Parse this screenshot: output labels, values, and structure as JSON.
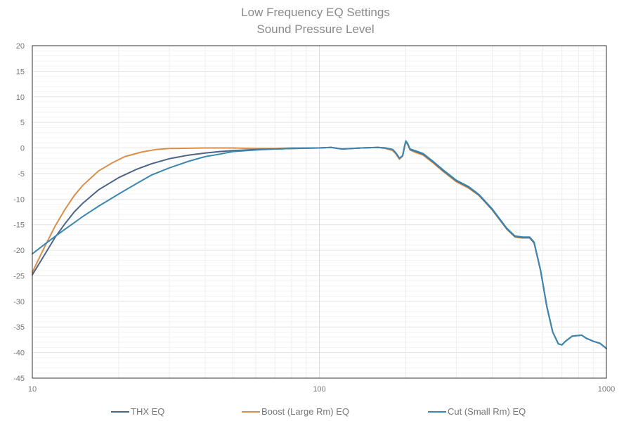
{
  "chart_data": {
    "type": "line",
    "title": "Low Frequency EQ Settings",
    "subtitle": "Sound Pressure Level",
    "xscale": "log",
    "xlim": [
      10,
      1000
    ],
    "ylim": [
      -45,
      20
    ],
    "xticks": [
      "10",
      "100",
      "1000"
    ],
    "yticks": [
      "20",
      "15",
      "10",
      "5",
      "0",
      "-5",
      "-10",
      "-15",
      "-20",
      "-25",
      "-30",
      "-35",
      "-40",
      "-45"
    ],
    "grid": true,
    "legend": "bottom",
    "series": [
      {
        "name": "THX EQ",
        "color": "#4a6585",
        "points": [
          [
            10,
            -24.8
          ],
          [
            11,
            -21
          ],
          [
            12,
            -17.5
          ],
          [
            13,
            -14.8
          ],
          [
            14,
            -12.5
          ],
          [
            15,
            -10.8
          ],
          [
            17,
            -8.2
          ],
          [
            20,
            -5.8
          ],
          [
            23,
            -4.2
          ],
          [
            26,
            -3.1
          ],
          [
            30,
            -2.1
          ],
          [
            35,
            -1.4
          ],
          [
            40,
            -1
          ],
          [
            45,
            -0.7
          ],
          [
            50,
            -0.5
          ],
          [
            60,
            -0.3
          ],
          [
            70,
            -0.2
          ],
          [
            80,
            -0.1
          ],
          [
            100,
            0
          ],
          [
            110,
            0.1
          ],
          [
            120,
            -0.2
          ],
          [
            140,
            0
          ],
          [
            160,
            0.1
          ],
          [
            170,
            0
          ],
          [
            180,
            -0.3
          ],
          [
            185,
            -1
          ],
          [
            190,
            -2
          ],
          [
            195,
            -1.5
          ],
          [
            198,
            0.3
          ],
          [
            200,
            1.3
          ],
          [
            203,
            0.8
          ],
          [
            207,
            -0.3
          ],
          [
            215,
            -0.6
          ],
          [
            230,
            -1.2
          ],
          [
            250,
            -2.8
          ],
          [
            270,
            -4.4
          ],
          [
            300,
            -6.4
          ],
          [
            330,
            -7.6
          ],
          [
            360,
            -9.2
          ],
          [
            400,
            -12
          ],
          [
            450,
            -15.8
          ],
          [
            480,
            -17.3
          ],
          [
            510,
            -17.5
          ],
          [
            540,
            -17.5
          ],
          [
            560,
            -18.5
          ],
          [
            590,
            -24
          ],
          [
            620,
            -31
          ],
          [
            650,
            -36
          ],
          [
            680,
            -38.3
          ],
          [
            700,
            -38.5
          ],
          [
            720,
            -37.8
          ],
          [
            760,
            -36.8
          ],
          [
            820,
            -36.6
          ],
          [
            850,
            -37.2
          ],
          [
            900,
            -37.8
          ],
          [
            950,
            -38.2
          ],
          [
            1000,
            -39.2
          ]
        ]
      },
      {
        "name": "Boost (Large Rm) EQ",
        "color": "#d98e4a",
        "points": [
          [
            10,
            -24.3
          ],
          [
            11,
            -19.5
          ],
          [
            12,
            -15.3
          ],
          [
            13,
            -12
          ],
          [
            14,
            -9.3
          ],
          [
            15,
            -7.3
          ],
          [
            17,
            -4.5
          ],
          [
            19,
            -2.9
          ],
          [
            21,
            -1.7
          ],
          [
            24,
            -0.8
          ],
          [
            27,
            -0.3
          ],
          [
            30,
            -0.1
          ],
          [
            40,
            0
          ],
          [
            50,
            0
          ],
          [
            60,
            -0.1
          ],
          [
            70,
            -0.1
          ],
          [
            80,
            0
          ],
          [
            100,
            0
          ],
          [
            110,
            0.1
          ],
          [
            120,
            -0.2
          ],
          [
            140,
            0
          ],
          [
            160,
            0.1
          ],
          [
            170,
            -0.1
          ],
          [
            180,
            -0.5
          ],
          [
            185,
            -1.2
          ],
          [
            190,
            -2.2
          ],
          [
            195,
            -1.6
          ],
          [
            198,
            0.2
          ],
          [
            200,
            1.2
          ],
          [
            203,
            0.7
          ],
          [
            207,
            -0.4
          ],
          [
            215,
            -0.8
          ],
          [
            230,
            -1.4
          ],
          [
            250,
            -3
          ],
          [
            270,
            -4.6
          ],
          [
            300,
            -6.6
          ],
          [
            330,
            -7.8
          ],
          [
            360,
            -9.3
          ],
          [
            400,
            -12.1
          ],
          [
            450,
            -15.9
          ],
          [
            480,
            -17.4
          ],
          [
            510,
            -17.6
          ],
          [
            540,
            -17.6
          ],
          [
            560,
            -18.6
          ],
          [
            590,
            -24
          ],
          [
            620,
            -31
          ],
          [
            650,
            -36
          ],
          [
            680,
            -38.3
          ],
          [
            700,
            -38.5
          ],
          [
            720,
            -37.8
          ],
          [
            760,
            -36.8
          ],
          [
            820,
            -36.6
          ],
          [
            850,
            -37.2
          ],
          [
            900,
            -37.8
          ],
          [
            950,
            -38.2
          ],
          [
            1000,
            -39.2
          ]
        ]
      },
      {
        "name": "Cut (Small Rm) EQ",
        "color": "#3b87b2",
        "points": [
          [
            10,
            -20.7
          ],
          [
            11,
            -18.9
          ],
          [
            12,
            -17.3
          ],
          [
            13,
            -15.9
          ],
          [
            14,
            -14.6
          ],
          [
            15,
            -13.4
          ],
          [
            17,
            -11.4
          ],
          [
            20,
            -9
          ],
          [
            23,
            -7
          ],
          [
            26,
            -5.3
          ],
          [
            30,
            -3.9
          ],
          [
            35,
            -2.6
          ],
          [
            40,
            -1.7
          ],
          [
            45,
            -1.2
          ],
          [
            50,
            -0.7
          ],
          [
            60,
            -0.4
          ],
          [
            70,
            -0.2
          ],
          [
            80,
            -0.1
          ],
          [
            100,
            0
          ],
          [
            110,
            0.1
          ],
          [
            120,
            -0.2
          ],
          [
            140,
            0
          ],
          [
            160,
            0.1
          ],
          [
            170,
            0
          ],
          [
            180,
            -0.3
          ],
          [
            185,
            -1
          ],
          [
            190,
            -2
          ],
          [
            195,
            -1.5
          ],
          [
            198,
            0.4
          ],
          [
            200,
            1.4
          ],
          [
            203,
            0.9
          ],
          [
            207,
            -0.2
          ],
          [
            215,
            -0.5
          ],
          [
            230,
            -1.1
          ],
          [
            250,
            -2.7
          ],
          [
            270,
            -4.3
          ],
          [
            300,
            -6.3
          ],
          [
            330,
            -7.5
          ],
          [
            360,
            -9.1
          ],
          [
            400,
            -11.9
          ],
          [
            450,
            -15.7
          ],
          [
            480,
            -17.2
          ],
          [
            510,
            -17.4
          ],
          [
            540,
            -17.4
          ],
          [
            560,
            -18.4
          ],
          [
            590,
            -24
          ],
          [
            620,
            -31
          ],
          [
            650,
            -36
          ],
          [
            680,
            -38.3
          ],
          [
            700,
            -38.5
          ],
          [
            720,
            -37.8
          ],
          [
            760,
            -36.8
          ],
          [
            820,
            -36.6
          ],
          [
            850,
            -37.2
          ],
          [
            900,
            -37.8
          ],
          [
            950,
            -38.2
          ],
          [
            1000,
            -39.2
          ]
        ]
      }
    ]
  }
}
